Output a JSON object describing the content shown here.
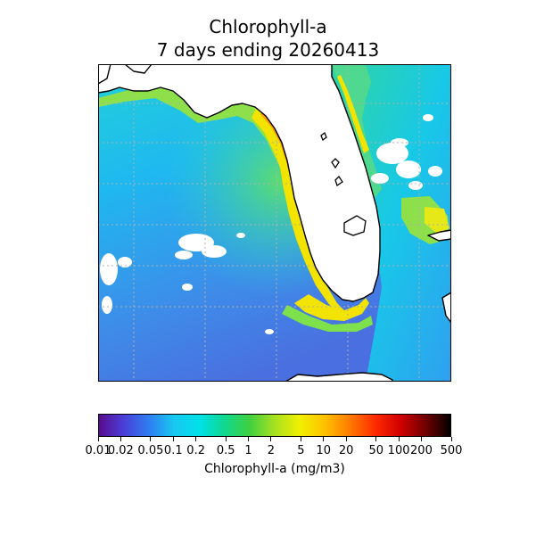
{
  "title": {
    "line1": "Chlorophyll-a",
    "line2": "7 days ending 20260413"
  },
  "colorbar": {
    "label": "Chlorophyll-a (mg/m3)",
    "scale": "log",
    "range": [
      0.01,
      500
    ],
    "ticks": [
      {
        "value": 0.01,
        "label": "0.01"
      },
      {
        "value": 0.02,
        "label": "0.02"
      },
      {
        "value": 0.05,
        "label": "0.05"
      },
      {
        "value": 0.1,
        "label": "0.1"
      },
      {
        "value": 0.2,
        "label": "0.2"
      },
      {
        "value": 0.5,
        "label": "0.5"
      },
      {
        "value": 1,
        "label": "1"
      },
      {
        "value": 2,
        "label": "2"
      },
      {
        "value": 5,
        "label": "5"
      },
      {
        "value": 10,
        "label": "10"
      },
      {
        "value": 20,
        "label": "20"
      },
      {
        "value": 50,
        "label": "50"
      },
      {
        "value": 100,
        "label": "100"
      },
      {
        "value": 200,
        "label": "200"
      },
      {
        "value": 500,
        "label": "500"
      }
    ],
    "colors": [
      "#5a0a8c",
      "#4a3fd8",
      "#2f7df0",
      "#18c8f0",
      "#00e0e8",
      "#10d890",
      "#40d040",
      "#a8e020",
      "#f0f000",
      "#ffc000",
      "#ff7a00",
      "#ff2a00",
      "#d00000",
      "#700000",
      "#000000"
    ]
  },
  "map": {
    "land_color": "#ffffff",
    "coastline_color": "#000000",
    "gridline_color": "#b0b0b0",
    "ocean_colors": {
      "deep_gulf": "#3f7fe6",
      "offshore": "#1fb8f0",
      "shelf": "#22d6c0",
      "near_coast": "#7ee04a",
      "coastal_high": "#f4e000",
      "bloom": "#ff9a00"
    }
  }
}
